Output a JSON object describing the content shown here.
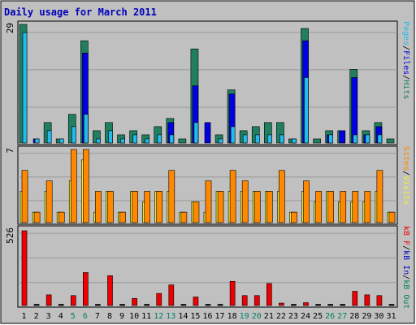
{
  "title": "Daily usage for March 2011",
  "colors": {
    "background": "#ffffff",
    "frame_bg": "#c0c0c0",
    "plot_bg": "#c0c0c0",
    "grid": "#9a9a9a",
    "title": "#0000bb",
    "hits": "#1f7f5f",
    "files": "#0000e0",
    "pages": "#22bbee",
    "visits": "#f2f23a",
    "sites": "#ff8800",
    "kb_f": "#ee0000",
    "kb_in": "#0000c0",
    "kb_out": "#008060",
    "weekend_label": "#008060",
    "weekday_label": "#000000"
  },
  "right_labels": {
    "top": [
      {
        "text": "Pages",
        "color": "#22bbee"
      },
      {
        "text": "/",
        "color": "#000000"
      },
      {
        "text": "Files",
        "color": "#0000e0"
      },
      {
        "text": "/",
        "color": "#000000"
      },
      {
        "text": "Hits",
        "color": "#1f7f5f"
      }
    ],
    "middle": [
      {
        "text": "Sites",
        "color": "#ff8800"
      },
      {
        "text": "/",
        "color": "#000000"
      },
      {
        "text": "Visits",
        "color": "#f2f23a"
      }
    ],
    "bottom": [
      {
        "text": "kB F",
        "color": "#ee0000"
      },
      {
        "text": "/",
        "color": "#000000"
      },
      {
        "text": "kB In",
        "color": "#0000c0"
      },
      {
        "text": "/",
        "color": "#000000"
      },
      {
        "text": "kB Out",
        "color": "#008060"
      }
    ]
  },
  "chart_data": [
    {
      "type": "bar",
      "panel": "top",
      "max_label": "29",
      "ylim": [
        0,
        29
      ],
      "categories": [
        "1",
        "2",
        "3",
        "4",
        "5",
        "6",
        "7",
        "8",
        "9",
        "10",
        "11",
        "12",
        "13",
        "14",
        "15",
        "16",
        "17",
        "18",
        "19",
        "20",
        "21",
        "22",
        "23",
        "24",
        "25",
        "26",
        "27",
        "28",
        "29",
        "30",
        "31"
      ],
      "series": [
        {
          "name": "Hits",
          "values": [
            29,
            0,
            5,
            1,
            7,
            25,
            3,
            5,
            2,
            3,
            2,
            4,
            6,
            1,
            23,
            0,
            2,
            13,
            3,
            4,
            5,
            5,
            1,
            28,
            1,
            3,
            3,
            18,
            3,
            5,
            1
          ]
        },
        {
          "name": "Files",
          "values": [
            0,
            1,
            0,
            0,
            0,
            22,
            0,
            0,
            0,
            0,
            0,
            0,
            5,
            0,
            14,
            5,
            0,
            12,
            0,
            0,
            0,
            0,
            0,
            25,
            0,
            2,
            3,
            16,
            2,
            4,
            0
          ]
        },
        {
          "name": "Pages",
          "values": [
            27,
            1,
            3,
            1,
            4,
            7,
            1,
            3,
            1,
            2,
            1,
            2,
            2,
            0,
            5,
            0,
            1,
            4,
            2,
            2,
            2,
            2,
            1,
            16,
            0,
            2,
            0,
            2,
            2,
            2,
            0
          ]
        }
      ]
    },
    {
      "type": "bar",
      "panel": "middle",
      "max_label": "7",
      "ylim": [
        0,
        7
      ],
      "series": [
        {
          "name": "Visits",
          "values": [
            3,
            1,
            3,
            1,
            4,
            6,
            1,
            3,
            1,
            3,
            2,
            3,
            3,
            1,
            2,
            1,
            3,
            3,
            3,
            3,
            3,
            3,
            1,
            3,
            2,
            3,
            2,
            2,
            2,
            3,
            1
          ]
        },
        {
          "name": "Sites",
          "values": [
            5,
            1,
            4,
            1,
            7,
            7,
            3,
            3,
            1,
            3,
            3,
            3,
            5,
            1,
            2,
            4,
            3,
            5,
            4,
            3,
            3,
            5,
            1,
            4,
            3,
            3,
            3,
            3,
            3,
            5,
            1
          ]
        }
      ]
    },
    {
      "type": "bar",
      "panel": "bottom",
      "max_label": "526",
      "ylim": [
        0,
        526
      ],
      "series": [
        {
          "name": "kB F",
          "values": [
            526,
            0,
            75,
            0,
            70,
            232,
            0,
            210,
            0,
            50,
            0,
            85,
            145,
            0,
            60,
            0,
            0,
            170,
            70,
            70,
            155,
            5,
            0,
            20,
            0,
            0,
            0,
            100,
            75,
            70,
            0
          ]
        },
        {
          "name": "kB In",
          "values": [
            0,
            0,
            0,
            0,
            0,
            0,
            0,
            0,
            0,
            0,
            0,
            0,
            0,
            0,
            0,
            0,
            0,
            0,
            0,
            0,
            0,
            0,
            0,
            0,
            0,
            0,
            0,
            0,
            0,
            0,
            0
          ]
        },
        {
          "name": "kB Out",
          "values": [
            0,
            0,
            0,
            0,
            0,
            0,
            0,
            0,
            0,
            0,
            0,
            0,
            0,
            0,
            0,
            0,
            0,
            0,
            0,
            0,
            0,
            0,
            0,
            0,
            0,
            0,
            0,
            0,
            0,
            0,
            0
          ]
        }
      ]
    }
  ],
  "x_axis": {
    "labels": [
      "1",
      "2",
      "3",
      "4",
      "5",
      "6",
      "7",
      "8",
      "9",
      "10",
      "11",
      "12",
      "13",
      "14",
      "15",
      "16",
      "17",
      "18",
      "19",
      "20",
      "21",
      "22",
      "23",
      "24",
      "25",
      "26",
      "27",
      "28",
      "29",
      "30",
      "31"
    ],
    "weekend_days": [
      5,
      6,
      12,
      13,
      19,
      20,
      26,
      27
    ]
  }
}
